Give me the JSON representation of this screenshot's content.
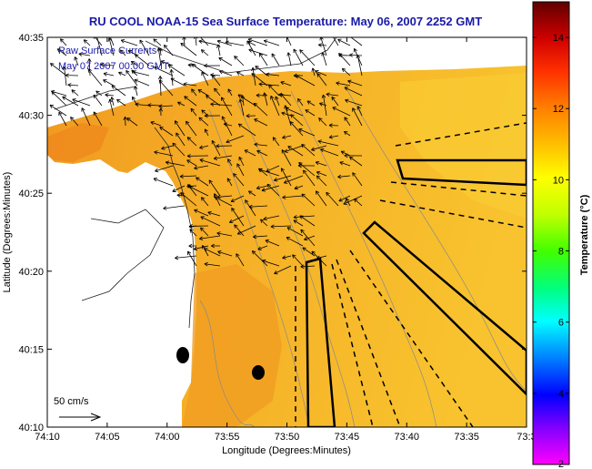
{
  "title": "RU COOL  NOAA-15  Sea Surface Temperature:  May 06, 2007 2252 GMT",
  "legend_lines": [
    "Raw Surface Currents",
    "May 07 2007 00:00 GMT"
  ],
  "scale_label": "50 cm/s",
  "x_axis": {
    "label": "Longitude (Degrees:Minutes)",
    "ticks": [
      "74:10",
      "74:05",
      "74:00",
      "73:55",
      "73:50",
      "73:45",
      "73:40",
      "73:35",
      "73:3"
    ]
  },
  "y_axis": {
    "label": "Latitude (Degrees:Minutes)",
    "ticks": [
      "40:35",
      "40:30",
      "40:25",
      "40:20",
      "40:15",
      "40:10"
    ]
  },
  "colorbar": {
    "label": "Temperature (°C)",
    "ticks": [
      "14",
      "12",
      "10",
      "8",
      "6",
      "4",
      "2"
    ],
    "range": [
      2,
      15
    ],
    "colors": [
      "#ff00ff",
      "#8000ff",
      "#0000ff",
      "#0080ff",
      "#00ffff",
      "#00ff80",
      "#80ff00",
      "#ffff00",
      "#ffc000",
      "#ff8000",
      "#ff4000",
      "#e00000",
      "#a00000",
      "#600000"
    ]
  },
  "colors": {
    "title": "#1a1aa8",
    "land": "#ffffff",
    "sea_warm": "#f5a623",
    "sea_mid": "#f7b62a",
    "sea_cool": "#f8c430",
    "buoy": "#000000"
  },
  "chart_data": {
    "type": "map",
    "variable": "Sea Surface Temperature",
    "units": "°C",
    "lon_range": [
      "74:10",
      "73:30"
    ],
    "lat_range": [
      "40:10",
      "40:35"
    ],
    "temperature_range_shown": [
      9,
      13
    ],
    "vector_scale": "50 cm/s"
  }
}
